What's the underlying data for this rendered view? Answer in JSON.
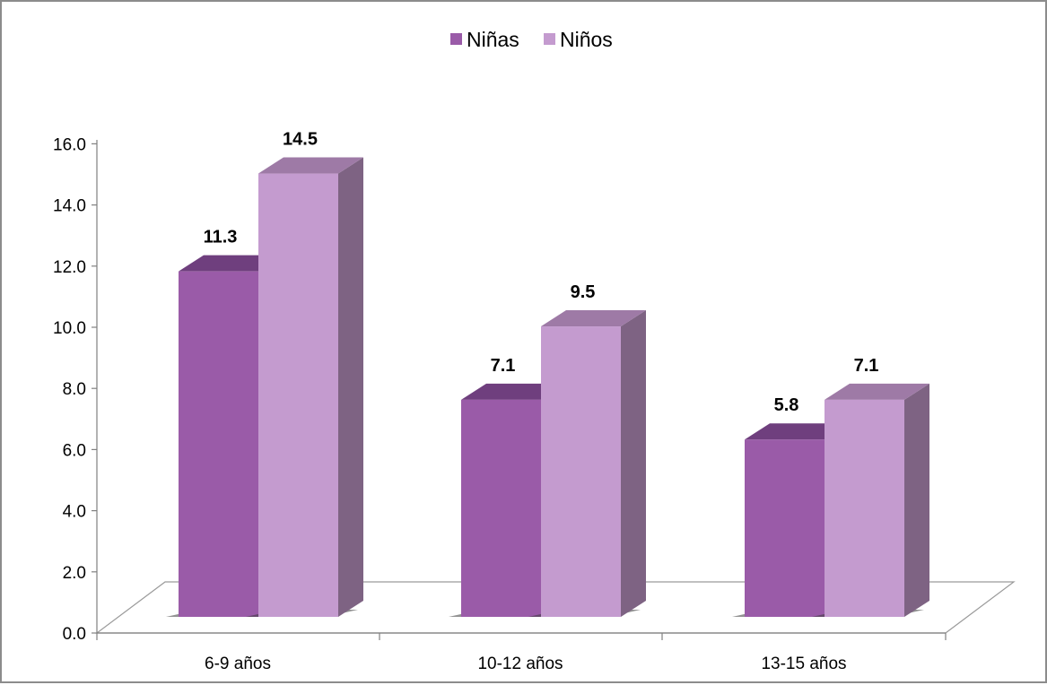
{
  "chart_data": {
    "type": "bar",
    "categories": [
      "6-9 años",
      "10-12 años",
      "13-15 años"
    ],
    "series": [
      {
        "name": "Niñas",
        "values": [
          11.3,
          7.1,
          5.8
        ]
      },
      {
        "name": "Niños",
        "values": [
          14.5,
          9.5,
          7.1
        ]
      }
    ],
    "data_labels": [
      [
        "11.3",
        "7.1",
        "5.8"
      ],
      [
        "14.5",
        "9.5",
        "7.1"
      ]
    ],
    "ylim": [
      0,
      16
    ],
    "yticks": [
      "0.0",
      "2.0",
      "4.0",
      "6.0",
      "8.0",
      "10.0",
      "12.0",
      "14.0",
      "16.0"
    ],
    "legend_position": "top",
    "grid": false,
    "style": "3d-clustered-column",
    "colors": {
      "Niñas": {
        "front": "#9a5ba8",
        "top": "#6f3f7e",
        "side": "#7b4b88"
      },
      "Niños": {
        "front": "#c49bcf",
        "top": "#9e7aa6",
        "side": "#7e6383"
      }
    }
  }
}
